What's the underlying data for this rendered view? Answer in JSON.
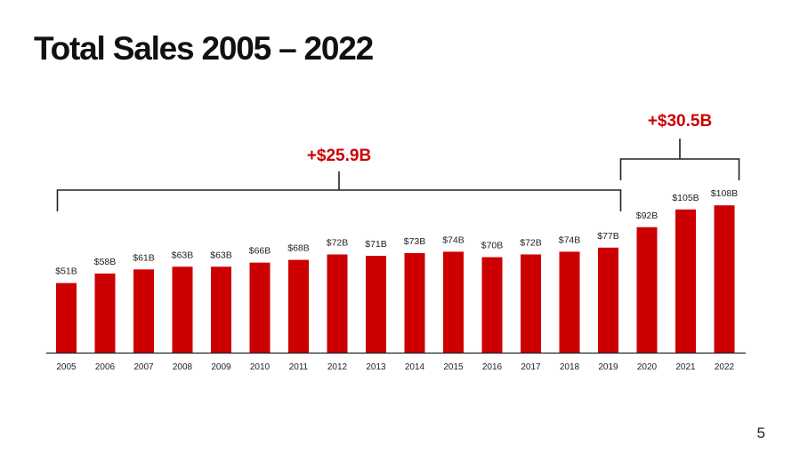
{
  "slide": {
    "title": "Total Sales 2005 – 2022",
    "page_number": "5"
  },
  "colors": {
    "bar": "#cc0000",
    "accent_text": "#cc0000",
    "bracket": "#222222",
    "axis": "#222222"
  },
  "chart_data": {
    "type": "bar",
    "title": "Total Sales 2005 – 2022",
    "xlabel": "",
    "ylabel": "",
    "ylim": [
      0,
      115
    ],
    "grid": false,
    "legend": "none",
    "categories": [
      "2005",
      "2006",
      "2007",
      "2008",
      "2009",
      "2010",
      "2011",
      "2012",
      "2013",
      "2014",
      "2015",
      "2016",
      "2017",
      "2018",
      "2019",
      "2020",
      "2021",
      "2022"
    ],
    "values": [
      51,
      58,
      61,
      63,
      63,
      66,
      68,
      72,
      71,
      73,
      74,
      70,
      72,
      74,
      77,
      92,
      105,
      108
    ],
    "data_labels": [
      "$51B",
      "$58B",
      "$61B",
      "$63B",
      "$63B",
      "$66B",
      "$68B",
      "$72B",
      "$71B",
      "$73B",
      "$74B",
      "$70B",
      "$72B",
      "$74B",
      "$77B",
      "$92B",
      "$105B",
      "$108B"
    ],
    "unit": "$B",
    "annotations": [
      {
        "label": "+$25.9B",
        "from": "2005",
        "to": "2019"
      },
      {
        "label": "+$30.5B",
        "from": "2019",
        "to": "2022"
      }
    ]
  }
}
